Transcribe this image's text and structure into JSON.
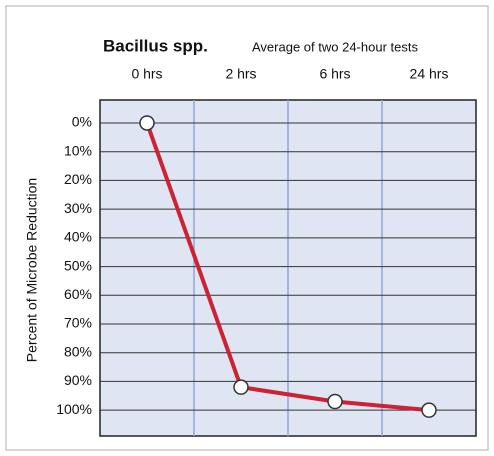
{
  "chart_data": {
    "type": "line",
    "title": "Bacillus spp.",
    "subtitle": "Average of two 24-hour tests",
    "y_label": "Percent of Microbe Reduction",
    "categories": [
      "0 hrs",
      "2 hrs",
      "6 hrs",
      "24 hrs"
    ],
    "series": [
      {
        "name": "Bacillus spp.",
        "color": "#cc2233",
        "values": [
          0,
          92,
          97,
          100
        ]
      }
    ],
    "ylim": [
      -8,
      109
    ],
    "y_inverted": true,
    "yticks": [
      {
        "value": 0,
        "label": "0%"
      },
      {
        "value": 10,
        "label": "10%"
      },
      {
        "value": 20,
        "label": "20%"
      },
      {
        "value": 30,
        "label": "30%"
      },
      {
        "value": 40,
        "label": "40%"
      },
      {
        "value": 50,
        "label": "50%"
      },
      {
        "value": 60,
        "label": "60%"
      },
      {
        "value": 70,
        "label": "70%"
      },
      {
        "value": 80,
        "label": "80%"
      },
      {
        "value": 90,
        "label": "90%"
      },
      {
        "value": 100,
        "label": "100%"
      }
    ],
    "grid": true,
    "category_position": "top"
  }
}
